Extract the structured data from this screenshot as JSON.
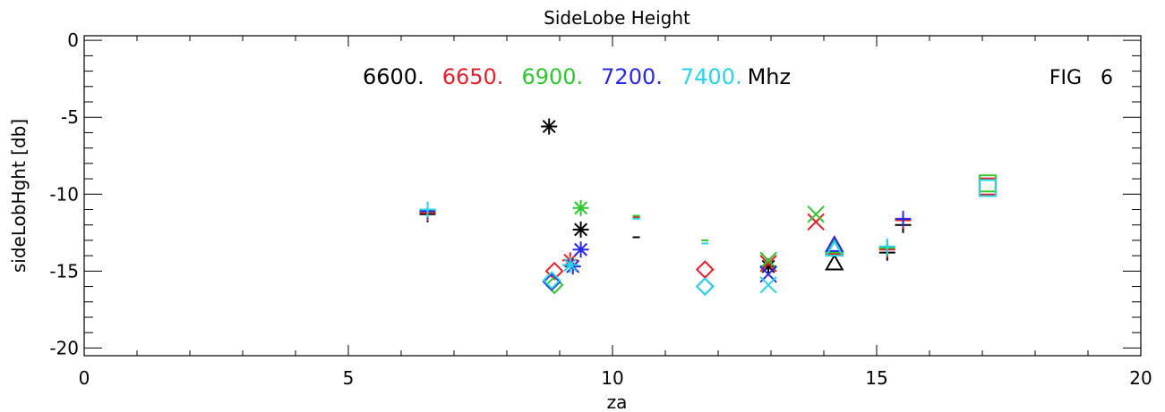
{
  "chart_data": {
    "type": "scatter",
    "title": "SideLobe Height",
    "xlabel": "za",
    "ylabel": "sideLobHght [db]",
    "xlim": [
      0,
      20
    ],
    "ylim": [
      -20.5,
      0.3
    ],
    "x_ticks": [
      0,
      5,
      10,
      15,
      20
    ],
    "y_ticks": [
      0,
      -5,
      -10,
      -15,
      -20
    ],
    "grid": false,
    "legend_placement": "top-center",
    "legend_suffix": "Mhz",
    "annotation": "FIG   6",
    "series": [
      {
        "name": "6600.",
        "color": "#000000",
        "points": [
          {
            "x": 6.5,
            "y": -11.3,
            "marker": "plus"
          },
          {
            "x": 8.8,
            "y": -5.6,
            "marker": "asterisk"
          },
          {
            "x": 9.4,
            "y": -12.3,
            "marker": "asterisk"
          },
          {
            "x": 10.45,
            "y": -12.8,
            "marker": "dash"
          },
          {
            "x": 12.95,
            "y": -14.7,
            "marker": "asterisk"
          },
          {
            "x": 14.2,
            "y": -14.5,
            "marker": "triangle"
          },
          {
            "x": 15.2,
            "y": -13.8,
            "marker": "plus"
          },
          {
            "x": 15.5,
            "y": -12.0,
            "marker": "plus"
          }
        ]
      },
      {
        "name": "6650.",
        "color": "#e8202a",
        "points": [
          {
            "x": 6.5,
            "y": -11.2,
            "marker": "plus"
          },
          {
            "x": 8.9,
            "y": -15.0,
            "marker": "diamond"
          },
          {
            "x": 9.2,
            "y": -14.3,
            "marker": "asterisk"
          },
          {
            "x": 10.45,
            "y": -11.5,
            "marker": "dash"
          },
          {
            "x": 11.75,
            "y": -14.9,
            "marker": "diamond"
          },
          {
            "x": 12.95,
            "y": -14.5,
            "marker": "x"
          },
          {
            "x": 13.85,
            "y": -11.8,
            "marker": "x"
          },
          {
            "x": 14.2,
            "y": -13.5,
            "marker": "triangle"
          },
          {
            "x": 15.2,
            "y": -13.6,
            "marker": "plus"
          },
          {
            "x": 15.5,
            "y": -11.7,
            "marker": "plus"
          },
          {
            "x": 17.1,
            "y": -9.5,
            "marker": "square"
          }
        ]
      },
      {
        "name": "6900.",
        "color": "#2ec82e",
        "points": [
          {
            "x": 6.5,
            "y": -11.1,
            "marker": "plus"
          },
          {
            "x": 8.9,
            "y": -15.9,
            "marker": "diamond"
          },
          {
            "x": 9.4,
            "y": -10.9,
            "marker": "asterisk"
          },
          {
            "x": 10.45,
            "y": -11.4,
            "marker": "dash"
          },
          {
            "x": 11.75,
            "y": -13.0,
            "marker": "dash"
          },
          {
            "x": 12.95,
            "y": -14.3,
            "marker": "x"
          },
          {
            "x": 13.85,
            "y": -11.3,
            "marker": "x"
          },
          {
            "x": 14.2,
            "y": -13.4,
            "marker": "triangle"
          },
          {
            "x": 15.2,
            "y": -13.5,
            "marker": "plus"
          },
          {
            "x": 17.1,
            "y": -9.3,
            "marker": "square"
          }
        ]
      },
      {
        "name": "7200.",
        "color": "#2828e6",
        "points": [
          {
            "x": 6.5,
            "y": -11.1,
            "marker": "plus"
          },
          {
            "x": 8.85,
            "y": -15.7,
            "marker": "diamond"
          },
          {
            "x": 9.25,
            "y": -14.7,
            "marker": "asterisk"
          },
          {
            "x": 9.4,
            "y": -13.6,
            "marker": "asterisk"
          },
          {
            "x": 11.75,
            "y": -16.0,
            "marker": "diamond"
          },
          {
            "x": 12.95,
            "y": -15.2,
            "marker": "x"
          },
          {
            "x": 14.2,
            "y": -13.3,
            "marker": "triangle"
          },
          {
            "x": 15.5,
            "y": -11.6,
            "marker": "plus"
          }
        ]
      },
      {
        "name": "7400.",
        "color": "#2ad4e6",
        "points": [
          {
            "x": 6.5,
            "y": -11.0,
            "marker": "plus"
          },
          {
            "x": 8.85,
            "y": -15.6,
            "marker": "diamond"
          },
          {
            "x": 9.2,
            "y": -14.6,
            "marker": "asterisk"
          },
          {
            "x": 10.45,
            "y": -11.6,
            "marker": "dash"
          },
          {
            "x": 11.75,
            "y": -13.2,
            "marker": "dash"
          },
          {
            "x": 11.75,
            "y": -16.0,
            "marker": "diamond"
          },
          {
            "x": 12.95,
            "y": -15.9,
            "marker": "x"
          },
          {
            "x": 14.2,
            "y": -13.6,
            "marker": "triangle"
          },
          {
            "x": 15.2,
            "y": -13.4,
            "marker": "plus"
          },
          {
            "x": 17.1,
            "y": -9.6,
            "marker": "square"
          }
        ]
      }
    ]
  }
}
